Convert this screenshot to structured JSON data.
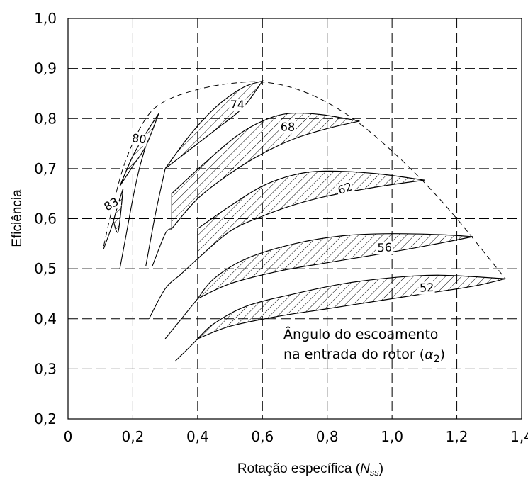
{
  "chart_data": {
    "type": "area",
    "xlabel": "Rotação específica (",
    "xlabel_symbol": "N",
    "xlabel_subscript": "ss",
    "xlabel_close": ")",
    "ylabel": "Eficiência",
    "xlim": [
      0,
      1.4
    ],
    "ylim": [
      0.2,
      1.0
    ],
    "xticks": [
      "0",
      "0,2",
      "0,4",
      "0,6",
      "0,8",
      "1,0",
      "1,2",
      "1,4"
    ],
    "yticks": [
      "0,2",
      "0,3",
      "0,4",
      "0,5",
      "0,6",
      "0,7",
      "0,8",
      "0,9",
      "1,0"
    ],
    "grid": true,
    "annotation_line1": "Ângulo do escoamento",
    "annotation_line2": "na entrada do rotor (",
    "annotation_symbol": "α",
    "annotation_subscript": "2",
    "annotation_close": ")",
    "series": [
      {
        "name": "83",
        "upper": [
          [
            0.14,
            0.595
          ],
          [
            0.155,
            0.63
          ],
          [
            0.17,
            0.66
          ]
        ],
        "lower": [
          [
            0.14,
            0.595
          ],
          [
            0.155,
            0.575
          ],
          [
            0.17,
            0.66
          ]
        ],
        "tail": [
          [
            0.11,
            0.54
          ],
          [
            0.13,
            0.575
          ],
          [
            0.14,
            0.595
          ]
        ]
      },
      {
        "name": "80",
        "upper": [
          [
            0.16,
            0.665
          ],
          [
            0.2,
            0.725
          ],
          [
            0.24,
            0.77
          ],
          [
            0.28,
            0.81
          ]
        ],
        "lower": [
          [
            0.16,
            0.665
          ],
          [
            0.2,
            0.705
          ],
          [
            0.24,
            0.745
          ],
          [
            0.28,
            0.81
          ]
        ],
        "tail": [
          [
            0.16,
            0.5
          ],
          [
            0.18,
            0.57
          ],
          [
            0.2,
            0.64
          ],
          [
            0.22,
            0.7
          ],
          [
            0.24,
            0.745
          ]
        ]
      },
      {
        "name": "74",
        "upper": [
          [
            0.3,
            0.7
          ],
          [
            0.38,
            0.77
          ],
          [
            0.46,
            0.825
          ],
          [
            0.54,
            0.862
          ],
          [
            0.6,
            0.875
          ]
        ],
        "lower": [
          [
            0.3,
            0.7
          ],
          [
            0.38,
            0.74
          ],
          [
            0.46,
            0.78
          ],
          [
            0.54,
            0.822
          ],
          [
            0.6,
            0.875
          ]
        ],
        "tail": [
          [
            0.24,
            0.505
          ],
          [
            0.27,
            0.61
          ],
          [
            0.3,
            0.7
          ]
        ]
      },
      {
        "name": "68",
        "upper": [
          [
            0.32,
            0.65
          ],
          [
            0.42,
            0.71
          ],
          [
            0.52,
            0.765
          ],
          [
            0.6,
            0.795
          ],
          [
            0.68,
            0.81
          ],
          [
            0.78,
            0.808
          ],
          [
            0.9,
            0.795
          ]
        ],
        "lower": [
          [
            0.32,
            0.58
          ],
          [
            0.4,
            0.64
          ],
          [
            0.5,
            0.69
          ],
          [
            0.6,
            0.73
          ],
          [
            0.7,
            0.76
          ],
          [
            0.8,
            0.78
          ],
          [
            0.9,
            0.795
          ]
        ],
        "tail": [
          [
            0.26,
            0.505
          ],
          [
            0.3,
            0.57
          ],
          [
            0.32,
            0.58
          ]
        ]
      },
      {
        "name": "62",
        "upper": [
          [
            0.4,
            0.58
          ],
          [
            0.5,
            0.625
          ],
          [
            0.6,
            0.665
          ],
          [
            0.7,
            0.688
          ],
          [
            0.8,
            0.695
          ],
          [
            0.95,
            0.69
          ],
          [
            1.1,
            0.677
          ]
        ],
        "lower": [
          [
            0.4,
            0.52
          ],
          [
            0.5,
            0.575
          ],
          [
            0.6,
            0.605
          ],
          [
            0.7,
            0.628
          ],
          [
            0.8,
            0.645
          ],
          [
            0.95,
            0.663
          ],
          [
            1.1,
            0.677
          ]
        ],
        "tail": [
          [
            0.25,
            0.4
          ],
          [
            0.3,
            0.46
          ],
          [
            0.35,
            0.49
          ],
          [
            0.4,
            0.52
          ]
        ]
      },
      {
        "name": "56",
        "upper": [
          [
            0.4,
            0.44
          ],
          [
            0.45,
            0.48
          ],
          [
            0.55,
            0.52
          ],
          [
            0.7,
            0.55
          ],
          [
            0.85,
            0.566
          ],
          [
            1.0,
            0.57
          ],
          [
            1.15,
            0.568
          ],
          [
            1.25,
            0.564
          ]
        ],
        "lower": [
          [
            0.4,
            0.44
          ],
          [
            0.5,
            0.47
          ],
          [
            0.65,
            0.495
          ],
          [
            0.8,
            0.512
          ],
          [
            0.95,
            0.528
          ],
          [
            1.1,
            0.545
          ],
          [
            1.25,
            0.564
          ]
        ],
        "tail": [
          [
            0.3,
            0.36
          ],
          [
            0.35,
            0.4
          ],
          [
            0.4,
            0.44
          ]
        ]
      },
      {
        "name": "52",
        "upper": [
          [
            0.4,
            0.36
          ],
          [
            0.45,
            0.39
          ],
          [
            0.55,
            0.425
          ],
          [
            0.7,
            0.45
          ],
          [
            0.85,
            0.47
          ],
          [
            1.0,
            0.482
          ],
          [
            1.15,
            0.487
          ],
          [
            1.35,
            0.48
          ]
        ],
        "lower": [
          [
            0.4,
            0.36
          ],
          [
            0.5,
            0.385
          ],
          [
            0.65,
            0.405
          ],
          [
            0.8,
            0.42
          ],
          [
            0.95,
            0.435
          ],
          [
            1.1,
            0.45
          ],
          [
            1.25,
            0.465
          ],
          [
            1.35,
            0.48
          ]
        ],
        "tail": [
          [
            0.33,
            0.315
          ],
          [
            0.37,
            0.34
          ],
          [
            0.4,
            0.36
          ]
        ]
      },
      {
        "name": "envelope",
        "points": [
          [
            0.11,
            0.545
          ],
          [
            0.14,
            0.63
          ],
          [
            0.18,
            0.72
          ],
          [
            0.24,
            0.8
          ],
          [
            0.3,
            0.835
          ],
          [
            0.4,
            0.858
          ],
          [
            0.5,
            0.87
          ],
          [
            0.6,
            0.873
          ],
          [
            0.7,
            0.86
          ],
          [
            0.8,
            0.832
          ],
          [
            0.9,
            0.79
          ],
          [
            1.0,
            0.735
          ],
          [
            1.1,
            0.672
          ],
          [
            1.2,
            0.6
          ],
          [
            1.3,
            0.52
          ],
          [
            1.35,
            0.48
          ]
        ]
      }
    ]
  }
}
